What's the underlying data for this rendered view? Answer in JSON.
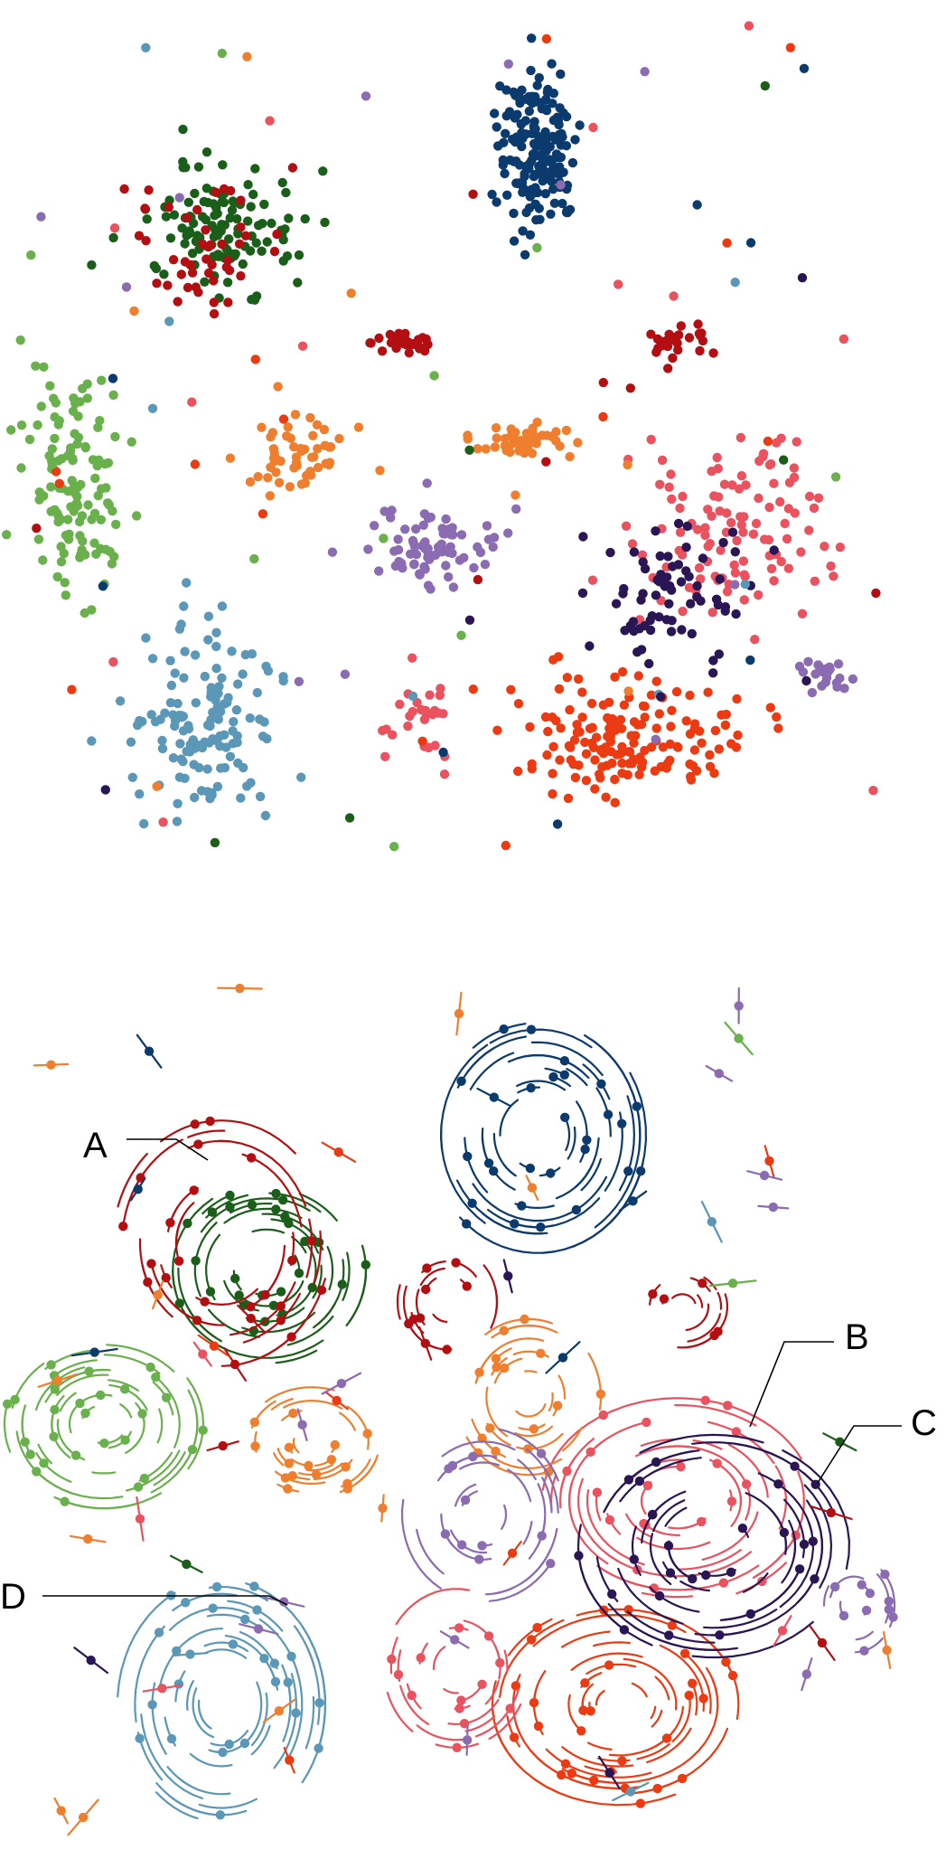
{
  "colors": {
    "navy": "#0b3a6e",
    "dark_green": "#1a5e1a",
    "red": "#b30f12",
    "light_green": "#6ab04c",
    "orange": "#ef7f2f",
    "purple": "#8b6bb1",
    "steel_blue": "#5b97b6",
    "coral": "#e9525e",
    "indigo": "#2a1555",
    "orange_red": "#ec3a12"
  },
  "chart_data": [
    {
      "type": "scatter",
      "clusters": [
        {
          "color": "navy",
          "center": [
            595,
            165
          ],
          "spread": [
            40,
            85
          ],
          "count": 170
        },
        {
          "color": "dark_green",
          "center": [
            245,
            255
          ],
          "spread": [
            75,
            60
          ],
          "count": 120
        },
        {
          "color": "red",
          "center": [
            225,
            270
          ],
          "spread": [
            80,
            60
          ],
          "count": 45
        },
        {
          "color": "red",
          "center": [
            450,
            380
          ],
          "spread": [
            35,
            18
          ],
          "count": 30
        },
        {
          "color": "red",
          "center": [
            750,
            375
          ],
          "spread": [
            45,
            18
          ],
          "count": 25
        },
        {
          "color": "light_green",
          "center": [
            85,
            530
          ],
          "spread": [
            50,
            110
          ],
          "count": 120
        },
        {
          "color": "orange",
          "center": [
            325,
            505
          ],
          "spread": [
            55,
            35
          ],
          "count": 55
        },
        {
          "color": "orange",
          "center": [
            575,
            485
          ],
          "spread": [
            50,
            18
          ],
          "count": 45
        },
        {
          "color": "purple",
          "center": [
            480,
            605
          ],
          "spread": [
            70,
            45
          ],
          "count": 80
        },
        {
          "color": "purple",
          "center": [
            915,
            750
          ],
          "spread": [
            22,
            20
          ],
          "count": 22
        },
        {
          "color": "coral",
          "center": [
            800,
            585
          ],
          "spread": [
            100,
            95
          ],
          "count": 110
        },
        {
          "color": "coral",
          "center": [
            465,
            795
          ],
          "spread": [
            35,
            55
          ],
          "count": 30
        },
        {
          "color": "indigo",
          "center": [
            750,
            650
          ],
          "spread": [
            85,
            80
          ],
          "count": 70
        },
        {
          "color": "steel_blue",
          "center": [
            225,
            800
          ],
          "spread": [
            75,
            90
          ],
          "count": 130
        },
        {
          "color": "orange_red",
          "center": [
            695,
            815
          ],
          "spread": [
            110,
            55
          ],
          "count": 160
        }
      ]
    },
    {
      "type": "scatter",
      "swirls": [
        {
          "color": "navy",
          "center": [
            595,
            1255
          ],
          "radii": [
            35,
            120
          ],
          "rings": 14
        },
        {
          "color": "dark_green",
          "center": [
            295,
            1405
          ],
          "radii": [
            30,
            110
          ],
          "rings": 14
        },
        {
          "color": "red",
          "center": [
            245,
            1375
          ],
          "radii": [
            50,
            120
          ],
          "rings": 8
        },
        {
          "color": "light_green",
          "center": [
            115,
            1575
          ],
          "radii": [
            25,
            110
          ],
          "rings": 14
        },
        {
          "color": "steel_blue",
          "center": [
            245,
            1885
          ],
          "radii": [
            25,
            115
          ],
          "rings": 15
        },
        {
          "color": "orange_red",
          "center": [
            685,
            1885
          ],
          "radii": [
            25,
            140
          ],
          "rings": 16
        },
        {
          "color": "coral",
          "center": [
            750,
            1660
          ],
          "radii": [
            40,
            150
          ],
          "rings": 12
        },
        {
          "color": "indigo",
          "center": [
            790,
            1710
          ],
          "radii": [
            40,
            150
          ],
          "rings": 12
        },
        {
          "color": "orange",
          "center": [
            585,
            1545
          ],
          "radii": [
            20,
            80
          ],
          "rings": 10
        },
        {
          "color": "orange",
          "center": [
            345,
            1595
          ],
          "radii": [
            20,
            75
          ],
          "rings": 10
        },
        {
          "color": "purple",
          "center": [
            535,
            1675
          ],
          "radii": [
            25,
            90
          ],
          "rings": 10
        },
        {
          "color": "coral",
          "center": [
            505,
            1845
          ],
          "radii": [
            25,
            80
          ],
          "rings": 8
        },
        {
          "color": "purple",
          "center": [
            945,
            1775
          ],
          "radii": [
            15,
            45
          ],
          "rings": 6
        },
        {
          "color": "red",
          "center": [
            495,
            1440
          ],
          "radii": [
            20,
            55
          ],
          "rings": 6
        },
        {
          "color": "red",
          "center": [
            755,
            1445
          ],
          "radii": [
            15,
            50
          ],
          "rings": 6
        }
      ],
      "annotations": [
        {
          "text": "A"
        },
        {
          "text": "B"
        },
        {
          "text": "C"
        },
        {
          "text": "D"
        }
      ]
    }
  ]
}
